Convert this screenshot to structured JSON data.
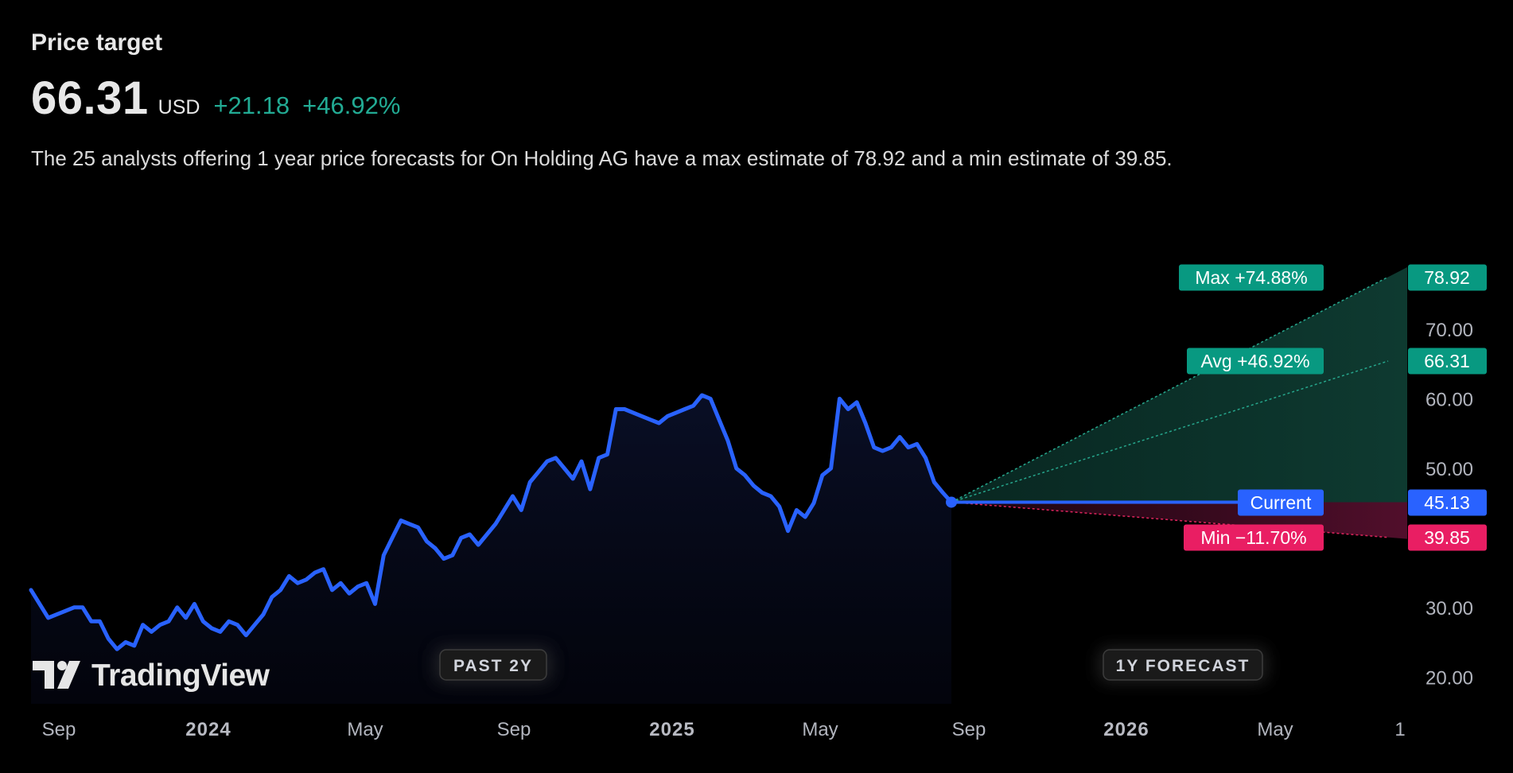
{
  "header": {
    "title": "Price target",
    "price": "66.31",
    "currency": "USD",
    "change": "+21.18",
    "change_pct": "+46.92%",
    "description": "The 25 analysts offering 1 year price forecasts for On Holding AG have a max estimate of 78.92 and a min estimate of 39.85."
  },
  "colors": {
    "background": "#000000",
    "price_line": "#2962ff",
    "positive": "#089981",
    "positive_text": "#22ab94",
    "negative": "#f23645",
    "min_label": "#e91e63",
    "axis_text": "#b2b5be",
    "pill_bg": "#1a1a1a"
  },
  "chart_data": {
    "type": "line",
    "ylim": [
      15,
      82
    ],
    "y_ticks": [
      20,
      30,
      50,
      60,
      70
    ],
    "y_tick_labels": [
      "20.00",
      "30.00",
      "50.00",
      "60.00",
      "70.00"
    ],
    "x_tick_labels": [
      {
        "label": "Sep",
        "bold": false
      },
      {
        "label": "2024",
        "bold": true
      },
      {
        "label": "May",
        "bold": false
      },
      {
        "label": "Sep",
        "bold": false
      },
      {
        "label": "2025",
        "bold": true
      },
      {
        "label": "May",
        "bold": false
      },
      {
        "label": "Sep",
        "bold": false
      },
      {
        "label": "2026",
        "bold": true
      },
      {
        "label": "May",
        "bold": false
      },
      {
        "label": "1",
        "bold": false
      }
    ],
    "history": [
      32.5,
      30.5,
      28.5,
      29.0,
      29.5,
      30.0,
      30.0,
      28.0,
      28.0,
      25.5,
      24.0,
      25.0,
      24.5,
      27.5,
      26.5,
      27.5,
      28.0,
      30.0,
      28.5,
      30.5,
      28.0,
      27.0,
      26.5,
      28.0,
      27.5,
      26.0,
      27.5,
      29.0,
      31.5,
      32.5,
      34.5,
      33.5,
      34.0,
      35.0,
      35.5,
      32.5,
      33.5,
      32.0,
      33.0,
      33.5,
      30.5,
      37.5,
      40.0,
      42.5,
      42.0,
      41.5,
      39.5,
      38.5,
      37.0,
      37.5,
      40.0,
      40.5,
      39.0,
      40.5,
      42.0,
      44.0,
      46.0,
      44.0,
      48.0,
      49.5,
      51.0,
      51.5,
      50.0,
      48.5,
      51.0,
      47.0,
      51.5,
      52.0,
      58.5,
      58.5,
      58.0,
      57.5,
      57.0,
      56.5,
      57.5,
      58.0,
      58.5,
      59.0,
      60.5,
      60.0,
      57.0,
      54.0,
      50.0,
      49.0,
      47.5,
      46.5,
      46.0,
      44.5,
      41.0,
      44.0,
      43.0,
      45.0,
      49.0,
      50.0,
      60.0,
      58.5,
      59.5,
      56.5,
      53.0,
      52.5,
      53.0,
      54.5,
      53.0,
      53.5,
      51.5,
      48.0,
      46.5,
      45.13
    ],
    "current": {
      "label": "Current",
      "value": 45.13,
      "value_label": "45.13"
    },
    "forecast": [
      {
        "name": "Max",
        "label": "Max +74.88%",
        "value": 78.92,
        "value_label": "78.92"
      },
      {
        "name": "Avg",
        "label": "Avg +46.92%",
        "value": 66.31,
        "value_label": "66.31"
      },
      {
        "name": "Min",
        "label": "Min −11.70%",
        "value": 39.85,
        "value_label": "39.85"
      }
    ],
    "period_labels": [
      "PAST 2Y",
      "1Y FORECAST"
    ],
    "watermark": "TradingView"
  }
}
